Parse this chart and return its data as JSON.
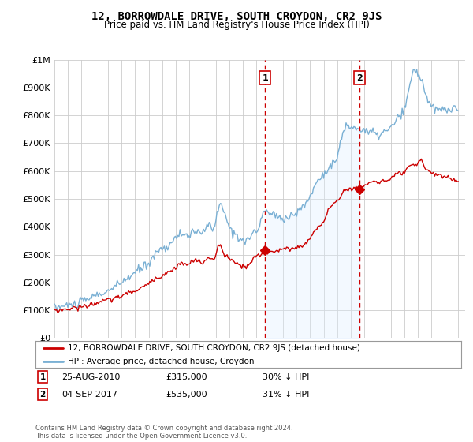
{
  "title": "12, BORROWDALE DRIVE, SOUTH CROYDON, CR2 9JS",
  "subtitle": "Price paid vs. HM Land Registry's House Price Index (HPI)",
  "legend_line1": "12, BORROWDALE DRIVE, SOUTH CROYDON, CR2 9JS (detached house)",
  "legend_line2": "HPI: Average price, detached house, Croydon",
  "annotation1_label": "1",
  "annotation1_date": "25-AUG-2010",
  "annotation1_price": "£315,000",
  "annotation1_hpi": "30% ↓ HPI",
  "annotation2_label": "2",
  "annotation2_date": "04-SEP-2017",
  "annotation2_price": "£535,000",
  "annotation2_hpi": "31% ↓ HPI",
  "footer": "Contains HM Land Registry data © Crown copyright and database right 2024.\nThis data is licensed under the Open Government Licence v3.0.",
  "bg_color": "#ffffff",
  "plot_bg_color": "#ffffff",
  "shade_color": "#ddeeff",
  "grid_color": "#cccccc",
  "red_line_color": "#cc0000",
  "blue_line_color": "#7ab0d4",
  "vline_color": "#cc0000",
  "annotation_box_color": "#cc0000",
  "ylim": [
    0,
    1000000
  ],
  "xlim_start": 1995.0,
  "xlim_end": 2025.5,
  "vline1_x": 2010.65,
  "vline2_x": 2017.67,
  "sale1_x": 2010.65,
  "sale1_y": 315000,
  "sale2_x": 2017.67,
  "sale2_y": 535000
}
